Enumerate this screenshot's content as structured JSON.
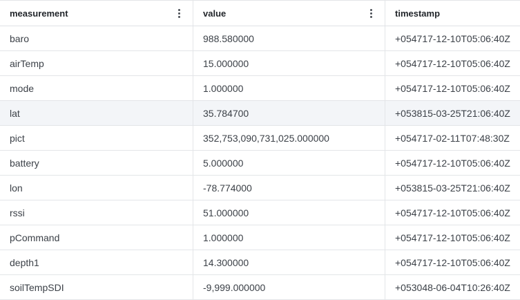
{
  "columns": [
    {
      "key": "measurement",
      "label": "measurement"
    },
    {
      "key": "value",
      "label": "value"
    },
    {
      "key": "timestamp",
      "label": "timestamp"
    }
  ],
  "rows": [
    {
      "measurement": "baro",
      "value": "988.580000",
      "timestamp": "+054717-12-10T05:06:40Z"
    },
    {
      "measurement": "airTemp",
      "value": "15.000000",
      "timestamp": "+054717-12-10T05:06:40Z"
    },
    {
      "measurement": "mode",
      "value": "1.000000",
      "timestamp": "+054717-12-10T05:06:40Z"
    },
    {
      "measurement": "lat",
      "value": "35.784700",
      "timestamp": "+053815-03-25T21:06:40Z"
    },
    {
      "measurement": "pict",
      "value": "352,753,090,731,025.000000",
      "timestamp": "+054717-02-11T07:48:30Z"
    },
    {
      "measurement": "battery",
      "value": "5.000000",
      "timestamp": "+054717-12-10T05:06:40Z"
    },
    {
      "measurement": "lon",
      "value": "-78.774000",
      "timestamp": "+053815-03-25T21:06:40Z"
    },
    {
      "measurement": "rssi",
      "value": "51.000000",
      "timestamp": "+054717-12-10T05:06:40Z"
    },
    {
      "measurement": "pCommand",
      "value": "1.000000",
      "timestamp": "+054717-12-10T05:06:40Z"
    },
    {
      "measurement": "depth1",
      "value": "14.300000",
      "timestamp": "+054717-12-10T05:06:40Z"
    },
    {
      "measurement": "soilTempSDI",
      "value": "-9,999.000000",
      "timestamp": "+053048-06-04T10:26:40Z"
    }
  ],
  "highlighted_row": 3,
  "colors": {
    "row_highlight": "#f3f5f8",
    "border": "#e3e5e8",
    "text": "#3b4047"
  },
  "icons": {
    "column_menu": "kebab-vertical-icon"
  }
}
